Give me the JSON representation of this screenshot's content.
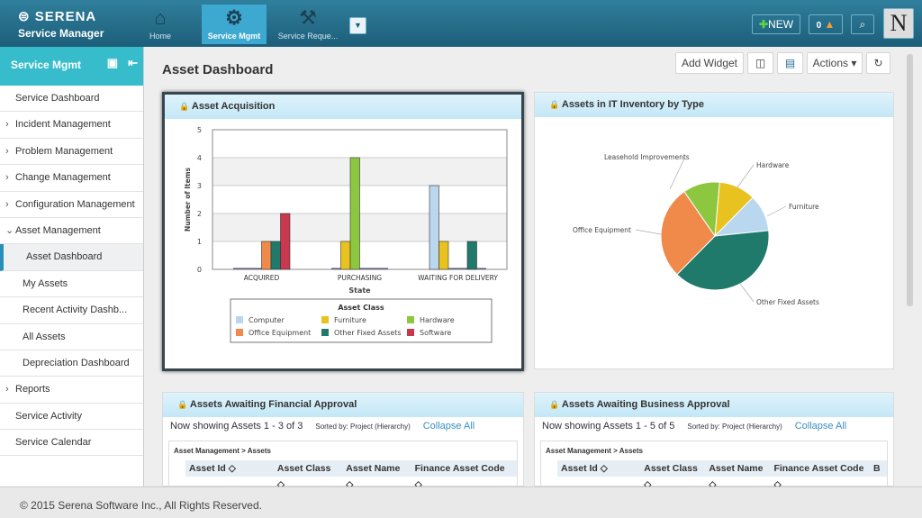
{
  "header": {
    "brand": "SERENA",
    "product": "Service Manager",
    "nav": [
      {
        "label": "Home",
        "icon": "home-icon"
      },
      {
        "label": "Service Mgmt",
        "icon": "gear-wrench-icon",
        "active": true
      },
      {
        "label": "Service Reque...",
        "icon": "tools-icon"
      }
    ],
    "new_label": "NEW",
    "notifications": "0",
    "avatar_letter": "N"
  },
  "sidebar": {
    "title": "Service Mgmt",
    "items": [
      {
        "label": "Service Dashboard"
      },
      {
        "label": "Incident Management",
        "expand": ">"
      },
      {
        "label": "Problem Management",
        "expand": ">"
      },
      {
        "label": "Change Management",
        "expand": ">"
      },
      {
        "label": "Configuration Management",
        "expand": ">"
      },
      {
        "label": "Asset Management",
        "expand": "v"
      },
      {
        "label": "Asset Dashboard",
        "sub": true,
        "selected": true
      },
      {
        "label": "My Assets",
        "sub": true
      },
      {
        "label": "Recent Activity Dashb...",
        "sub": true
      },
      {
        "label": "All Assets",
        "sub": true
      },
      {
        "label": "Depreciation Dashboard",
        "sub": true
      },
      {
        "label": "Reports",
        "expand": ">"
      },
      {
        "label": "Service Activity"
      },
      {
        "label": "Service Calendar"
      }
    ]
  },
  "page": {
    "title": "Asset Dashboard",
    "add_widget": "Add Widget",
    "actions": "Actions"
  },
  "widgets": {
    "acq": {
      "title": "Asset Acquisition"
    },
    "inv": {
      "title": "Assets in IT Inventory by Type"
    },
    "fin": {
      "title": "Assets Awaiting Financial Approval",
      "showing": "Now showing Assets 1 - 3 of 3",
      "sorted": "Sorted by: Project (Hierarchy)",
      "collapse": "Collapse All",
      "breadcrumb": "Asset Management > Assets",
      "columns": [
        "Asset Id ◇",
        "Asset Class ◇",
        "Asset Name ◇",
        "Finance Asset Code ◇"
      ]
    },
    "bus": {
      "title": "Assets Awaiting Business Approval",
      "showing": "Now showing Assets 1 - 5 of 5",
      "sorted": "Sorted by: Project (Hierarchy)",
      "collapse": "Collapse All",
      "breadcrumb": "Asset Management > Assets",
      "columns": [
        "Asset Id ◇",
        "Asset Class ◇",
        "Asset Name ◇",
        "Finance Asset Code ◇",
        "B"
      ]
    }
  },
  "chart_data": [
    {
      "type": "bar",
      "xlabel": "State",
      "ylabel": "Number of Items",
      "ylim": [
        0,
        5
      ],
      "yticks": [
        0,
        1,
        2,
        3,
        4,
        5
      ],
      "grid": true,
      "legend_title": "Asset Class",
      "legend_placement": "bottom",
      "categories": [
        "ACQUIRED",
        "PURCHASING",
        "WAITING FOR DELIVERY"
      ],
      "series": [
        {
          "name": "Computer",
          "color": "#b9d7ef",
          "values": [
            0,
            0,
            3
          ]
        },
        {
          "name": "Furniture",
          "color": "#e8c21e",
          "values": [
            0,
            1,
            1
          ]
        },
        {
          "name": "Hardware",
          "color": "#8dc63f",
          "values": [
            0,
            4,
            0
          ]
        },
        {
          "name": "Office Equipment",
          "color": "#f08a4b",
          "values": [
            1,
            0,
            0
          ]
        },
        {
          "name": "Other Fixed Assets",
          "color": "#1f7a6c",
          "values": [
            1,
            0,
            1
          ]
        },
        {
          "name": "Software",
          "color": "#c8384f",
          "values": [
            2,
            0,
            0
          ]
        }
      ]
    },
    {
      "type": "pie",
      "slices": [
        {
          "name": "Furniture",
          "value": 11,
          "color": "#e8c21e"
        },
        {
          "name": "Computer",
          "value": 11,
          "color": "#b9d7ef"
        },
        {
          "name": "Other Fixed Assets",
          "value": 39,
          "color": "#1f7a6c"
        },
        {
          "name": "Office Equipment",
          "value": 28,
          "color": "#f08a4b"
        },
        {
          "name": "Hardware",
          "value": 11,
          "color": "#8dc63f"
        }
      ],
      "labels": [
        "Leasehold Improvements",
        "Hardware",
        "Furniture",
        "Office Equipment",
        "Other Fixed Assets"
      ]
    }
  ],
  "footer": "© 2015 Serena Software Inc., All Rights Reserved."
}
